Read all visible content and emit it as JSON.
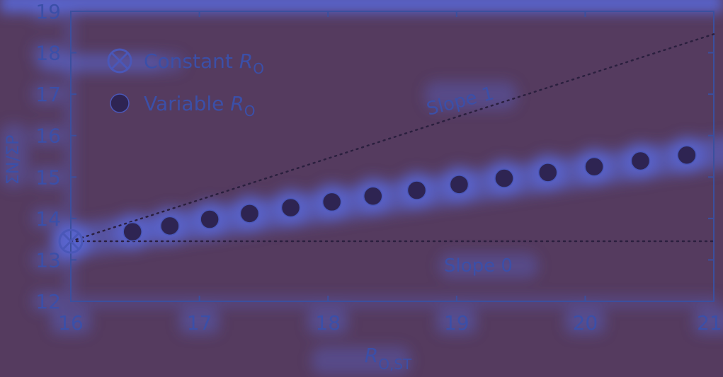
{
  "colors": {
    "background": "#553b5f",
    "glow": "#5a68d8",
    "axis": "#3b4f9e",
    "text": "#3b4fa8",
    "marker_fill": "#2e2452",
    "marker_edge": "#4a57b8",
    "reference_line": "#2a1f3e"
  },
  "chart_data": {
    "type": "scatter",
    "xlabel_main": "R",
    "xlabel_sub": "O,ST",
    "ylabel": "ΣN/ΣP",
    "xlim": [
      16,
      21
    ],
    "ylim": [
      12,
      19
    ],
    "xticks": [
      "16",
      "17",
      "18",
      "19",
      "20",
      "21"
    ],
    "yticks": [
      "12",
      "13",
      "14",
      "15",
      "16",
      "17",
      "18",
      "19"
    ],
    "legend": {
      "position": "top-left",
      "entries": [
        {
          "label": "Constant ",
          "sub_symbol": "R",
          "sub": "O",
          "marker": "circle-cross-icon"
        },
        {
          "label": "Variable ",
          "sub_symbol": "R",
          "sub": "O",
          "marker": "filled-circle-icon"
        }
      ]
    },
    "series": [
      {
        "name": "Constant R_O",
        "marker": "circle-cross",
        "points": [
          {
            "x": 16.0,
            "y": 13.45
          }
        ]
      },
      {
        "name": "Variable R_O",
        "marker": "filled-circle",
        "points": [
          {
            "x": 16.48,
            "y": 13.68
          },
          {
            "x": 16.77,
            "y": 13.82
          },
          {
            "x": 17.08,
            "y": 13.98
          },
          {
            "x": 17.39,
            "y": 14.12
          },
          {
            "x": 17.71,
            "y": 14.26
          },
          {
            "x": 18.03,
            "y": 14.4
          },
          {
            "x": 18.35,
            "y": 14.54
          },
          {
            "x": 18.69,
            "y": 14.68
          },
          {
            "x": 19.02,
            "y": 14.82
          },
          {
            "x": 19.37,
            "y": 14.97
          },
          {
            "x": 19.71,
            "y": 15.11
          },
          {
            "x": 20.07,
            "y": 15.25
          },
          {
            "x": 20.43,
            "y": 15.39
          },
          {
            "x": 20.79,
            "y": 15.53
          }
        ]
      }
    ],
    "reference_lines": [
      {
        "label": "Slope 1",
        "x": [
          16,
          21
        ],
        "y": [
          13.45,
          18.45
        ],
        "style": "dotted"
      },
      {
        "label": "Slope 0",
        "x": [
          16,
          21
        ],
        "y": [
          13.45,
          13.45
        ],
        "style": "dotted"
      }
    ]
  }
}
